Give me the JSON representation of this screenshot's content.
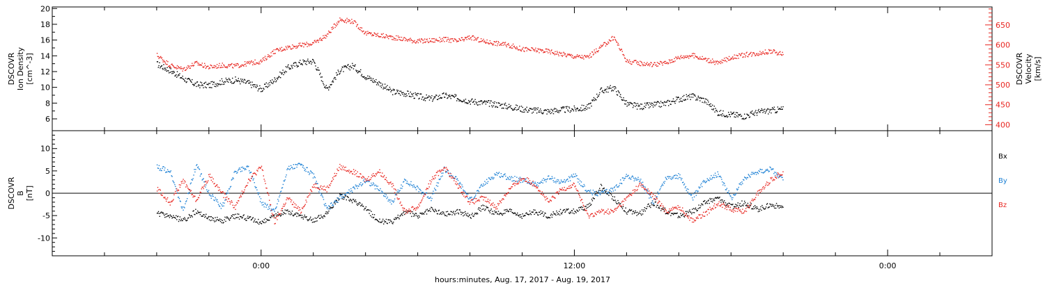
{
  "colors": {
    "axis": "#000000",
    "black_series": "#000000",
    "red_series": "#e8251f",
    "blue_series": "#1a7fd4"
  },
  "chart_data": [
    {
      "type": "scatter",
      "panel": "top",
      "left_axis": {
        "label_lines": [
          "DSCOVR",
          "Ion Density",
          "[cm^-3]"
        ],
        "ylim": [
          4.5,
          20.2
        ],
        "ticks": [
          6,
          8,
          10,
          12,
          14,
          16,
          18,
          20
        ]
      },
      "right_axis": {
        "label_lines": [
          "DSCOVR",
          "Velocity",
          "[km/s]"
        ],
        "ylim": [
          385,
          695
        ],
        "ticks": [
          400,
          450,
          500,
          550,
          600,
          650
        ]
      },
      "series": [
        {
          "name": "",
          "color": "#000000",
          "axis": "left",
          "x": [
            -4.0,
            -3.5,
            -3.0,
            -2.5,
            -2.0,
            -1.5,
            -1.0,
            -0.5,
            0.0,
            0.5,
            1.0,
            1.5,
            2.0,
            2.5,
            3.0,
            3.5,
            4.0,
            4.5,
            5.0,
            5.5,
            6.0,
            6.5,
            7.0,
            7.5,
            8.0,
            8.5,
            9.0,
            9.5,
            10.0,
            10.5,
            11.0,
            11.5,
            12.0,
            12.5,
            13.0,
            13.5,
            14.0,
            14.5,
            15.0,
            15.5,
            16.0,
            16.5,
            17.0,
            17.5,
            18.0,
            18.5,
            19.0,
            19.5,
            20.0
          ],
          "y": [
            13,
            12.2,
            11.2,
            10.4,
            10.3,
            10.8,
            11.0,
            10.6,
            9.8,
            11.0,
            12.5,
            13.2,
            13.4,
            9.8,
            12.2,
            12.8,
            11.4,
            10.6,
            9.5,
            9.3,
            8.9,
            8.6,
            9.0,
            8.7,
            8.3,
            8.1,
            7.9,
            7.6,
            7.3,
            7.1,
            7.0,
            7.2,
            7.3,
            7.5,
            9.6,
            10.0,
            7.9,
            7.6,
            7.8,
            8.0,
            8.6,
            8.9,
            8.4,
            6.8,
            6.6,
            6.4,
            6.9,
            7.1,
            7.3
          ]
        },
        {
          "name": "",
          "color": "#e8251f",
          "axis": "right",
          "x": [
            -4.0,
            -3.5,
            -3.0,
            -2.5,
            -2.0,
            -1.5,
            -1.0,
            -0.5,
            0.0,
            0.5,
            1.0,
            1.5,
            2.0,
            2.5,
            3.0,
            3.5,
            4.0,
            4.5,
            5.0,
            5.5,
            6.0,
            6.5,
            7.0,
            7.5,
            8.0,
            8.5,
            9.0,
            9.5,
            10.0,
            10.5,
            11.0,
            11.5,
            12.0,
            12.5,
            13.0,
            13.5,
            14.0,
            14.5,
            15.0,
            15.5,
            16.0,
            16.5,
            17.0,
            17.5,
            18.0,
            18.5,
            19.0,
            19.5,
            20.0
          ],
          "y": [
            575,
            550,
            540,
            555,
            545,
            550,
            548,
            555,
            560,
            585,
            595,
            600,
            605,
            625,
            665,
            660,
            630,
            625,
            620,
            615,
            610,
            612,
            615,
            610,
            620,
            610,
            605,
            600,
            590,
            588,
            585,
            578,
            572,
            570,
            595,
            620,
            560,
            555,
            552,
            556,
            570,
            575,
            565,
            555,
            570,
            576,
            580,
            585,
            578
          ]
        }
      ]
    },
    {
      "type": "scatter",
      "panel": "bottom",
      "left_axis": {
        "label_lines": [
          "DSCOVR",
          "B",
          "[nT]"
        ],
        "ylim": [
          -14,
          14
        ],
        "ticks": [
          -10,
          -5,
          0,
          5,
          10
        ]
      },
      "legend": [
        "Bx",
        "By",
        "Bz"
      ],
      "series": [
        {
          "name": "Bx",
          "color": "#000000",
          "x": [
            -4.0,
            -3.5,
            -3.0,
            -2.5,
            -2.0,
            -1.5,
            -1.0,
            -0.5,
            0.0,
            0.5,
            1.0,
            1.5,
            2.0,
            2.5,
            3.0,
            3.5,
            4.0,
            4.5,
            5.0,
            5.5,
            6.0,
            6.5,
            7.0,
            7.5,
            8.0,
            8.5,
            9.0,
            9.5,
            10.0,
            10.5,
            11.0,
            11.5,
            12.0,
            12.5,
            13.0,
            13.5,
            14.0,
            14.5,
            15.0,
            15.5,
            16.0,
            16.5,
            17.0,
            17.5,
            18.0,
            18.5,
            19.0,
            19.5,
            20.0
          ],
          "y": [
            -4.5,
            -5.0,
            -6.0,
            -4.0,
            -5.5,
            -6.0,
            -5.0,
            -5.5,
            -6.5,
            -5.0,
            -4.0,
            -5.0,
            -6.0,
            -4.5,
            -0.5,
            -1.5,
            -3.5,
            -6.0,
            -6.5,
            -4.0,
            -5.0,
            -3.5,
            -4.5,
            -4.0,
            -5.0,
            -3.0,
            -4.5,
            -4.0,
            -5.0,
            -4.0,
            -5.0,
            -4.0,
            -4.0,
            -3.0,
            1.5,
            -1.0,
            -4.0,
            -4.5,
            -2.0,
            -4.0,
            -5.0,
            -4.0,
            -2.0,
            -1.0,
            -3.0,
            -2.0,
            -3.5,
            -2.5,
            -3.0
          ]
        },
        {
          "name": "By",
          "color": "#1a7fd4",
          "x": [
            -4.0,
            -3.5,
            -3.0,
            -2.5,
            -2.0,
            -1.5,
            -1.0,
            -0.5,
            0.0,
            0.5,
            1.0,
            1.5,
            2.0,
            2.5,
            3.0,
            3.5,
            4.0,
            4.5,
            5.0,
            5.5,
            6.0,
            6.5,
            7.0,
            7.5,
            8.0,
            8.5,
            9.0,
            9.5,
            10.0,
            10.5,
            11.0,
            11.5,
            12.0,
            12.5,
            13.0,
            13.5,
            14.0,
            14.5,
            15.0,
            15.5,
            16.0,
            16.5,
            17.0,
            17.5,
            18.0,
            18.5,
            19.0,
            19.5,
            20.0
          ],
          "y": [
            6.0,
            5.0,
            -4.0,
            6.5,
            0.0,
            -3.0,
            5.0,
            6.0,
            -2.0,
            -4.0,
            5.5,
            6.5,
            4.0,
            -3.5,
            -1.0,
            1.0,
            3.0,
            1.0,
            -2.0,
            3.0,
            1.0,
            -1.0,
            5.5,
            3.0,
            -1.5,
            2.0,
            4.5,
            3.5,
            3.0,
            2.0,
            3.5,
            2.5,
            4.0,
            0.5,
            0.0,
            1.0,
            4.0,
            3.0,
            -2.0,
            3.5,
            4.0,
            -1.0,
            3.0,
            4.5,
            -1.0,
            3.5,
            5.0,
            5.5,
            3.0
          ]
        },
        {
          "name": "Bz",
          "color": "#e8251f",
          "x": [
            -4.0,
            -3.5,
            -3.0,
            -2.5,
            -2.0,
            -1.5,
            -1.0,
            -0.5,
            0.0,
            0.5,
            1.0,
            1.5,
            2.0,
            2.5,
            3.0,
            3.5,
            4.0,
            4.5,
            5.0,
            5.5,
            6.0,
            6.5,
            7.0,
            7.5,
            8.0,
            8.5,
            9.0,
            9.5,
            10.0,
            10.5,
            11.0,
            11.5,
            12.0,
            12.5,
            13.0,
            13.5,
            14.0,
            14.5,
            15.0,
            15.5,
            16.0,
            16.5,
            17.0,
            17.5,
            18.0,
            18.5,
            19.0,
            19.5,
            20.0
          ],
          "y": [
            1.0,
            -2.0,
            3.0,
            -1.5,
            4.0,
            0.0,
            -3.0,
            3.0,
            6.0,
            -6.5,
            -1.0,
            -4.0,
            2.0,
            1.0,
            6.0,
            5.0,
            3.0,
            5.0,
            2.0,
            -4.0,
            -3.0,
            3.0,
            6.0,
            2.0,
            -2.0,
            -1.0,
            -3.0,
            1.0,
            3.5,
            2.0,
            -2.0,
            1.0,
            2.0,
            -5.0,
            -4.0,
            -4.0,
            -1.0,
            2.0,
            -0.5,
            -4.0,
            -3.0,
            -6.0,
            -4.5,
            -2.0,
            -3.5,
            -4.0,
            0.0,
            3.0,
            5.0
          ]
        }
      ]
    }
  ],
  "x_axis": {
    "xlim": [
      -8,
      28
    ],
    "tick_labels": [
      {
        "x": 0,
        "label": "0:00"
      },
      {
        "x": 12,
        "label": "12:00"
      },
      {
        "x": 24,
        "label": "0:00"
      }
    ],
    "title": "hours:minutes, Aug. 17, 2017 - Aug. 19, 2017"
  }
}
